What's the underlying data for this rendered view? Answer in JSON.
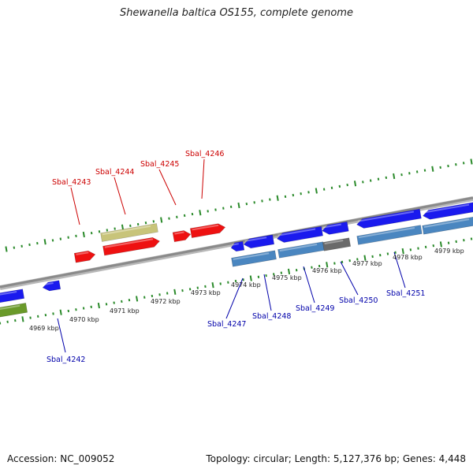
{
  "title": "Shewanella baltica OS155, complete genome",
  "footer": {
    "accession": "Accession: NC_009052",
    "stats": "Topology: circular; Length: 5,127,376 bp; Genes: 4,448"
  },
  "colors": {
    "backbone": "#8a8a8a",
    "ruler": "#2a8a2a",
    "forward_label": "#cc0000",
    "reverse_label": "#0000aa",
    "red_gene": "#ee1111",
    "tan_gene": "#c8c47a",
    "blue_gene": "#1a1aee",
    "steel_gene": "#4a86c0",
    "gray_gene": "#6a6a6a",
    "green_gene": "#6a9a2a"
  },
  "axis_labels": [
    "4969 kbp",
    "4970 kbp",
    "4971 kbp",
    "4972 kbp",
    "4973 kbp",
    "4974 kbp",
    "4975 kbp",
    "4976 kbp",
    "4977 kbp",
    "4978 kbp",
    "4979 kbp"
  ],
  "forward_labels": [
    "Sbal_4243",
    "Sbal_4244",
    "Sbal_4245",
    "Sbal_4246"
  ],
  "reverse_labels": [
    "Sbal_4242",
    "Sbal_4247",
    "Sbal_4248",
    "Sbal_4249",
    "Sbal_4250",
    "Sbal_4251"
  ]
}
